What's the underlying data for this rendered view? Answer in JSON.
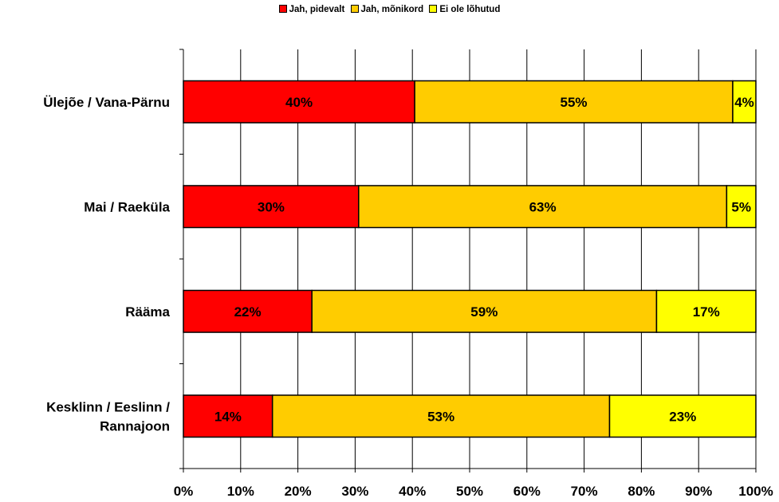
{
  "chart_data": {
    "type": "bar",
    "orientation": "horizontal",
    "stacked": true,
    "percent_stacked": true,
    "categories": [
      "Ülejõe / Vana-Pärnu",
      "Mai / Raeküla",
      "Rääma",
      "Kesklinn / Eeslinn / Rannajoon"
    ],
    "series": [
      {
        "name": "Jah, pidevalt",
        "color": "#ff0000",
        "values": [
          40,
          30,
          22,
          14
        ],
        "labels": [
          "40%",
          "30%",
          "22%",
          "14%"
        ]
      },
      {
        "name": "Jah, mõnikord",
        "color": "#ffcc00",
        "values": [
          55,
          63,
          59,
          53
        ],
        "labels": [
          "55%",
          "63%",
          "59%",
          "53%"
        ]
      },
      {
        "name": "Ei ole lõhutud",
        "color": "#ffff00",
        "values": [
          4,
          5,
          17,
          23
        ],
        "labels": [
          "4%",
          "5%",
          "17%",
          "23%"
        ]
      }
    ],
    "xlim": [
      0,
      100
    ],
    "x_ticks": [
      "0%",
      "10%",
      "20%",
      "30%",
      "40%",
      "50%",
      "60%",
      "70%",
      "80%",
      "90%",
      "100%"
    ],
    "grid": "vertical",
    "legend_position": "top"
  }
}
